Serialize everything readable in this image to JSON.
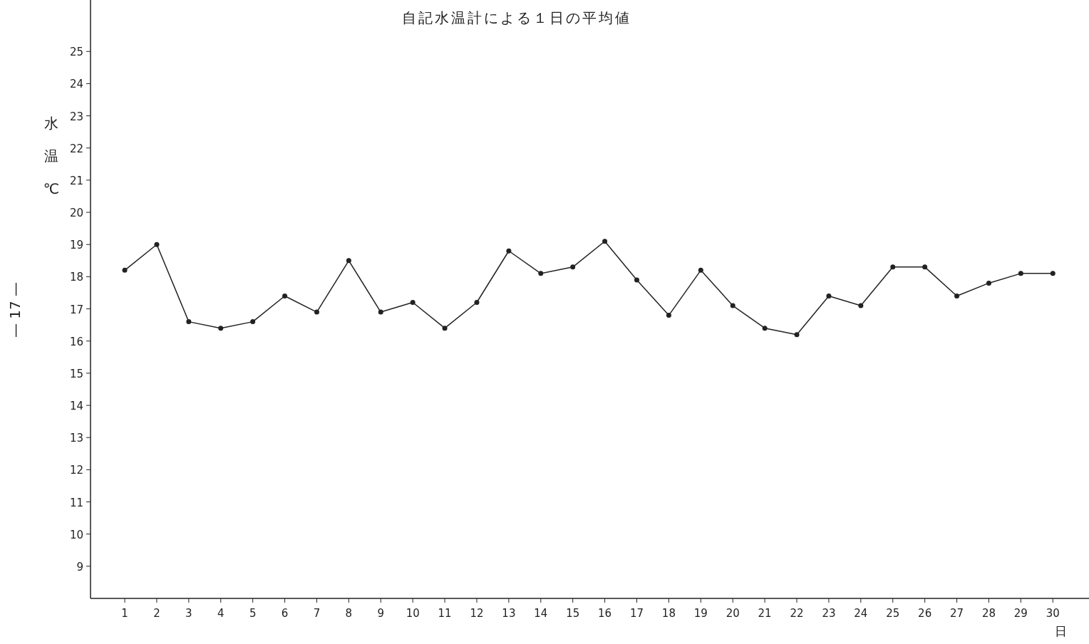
{
  "chart_data": {
    "type": "line",
    "title": "自記水温計による１日の平均値",
    "xlabel": "日",
    "ylabel": "水温℃",
    "categories": [
      "1",
      "2",
      "3",
      "4",
      "5",
      "6",
      "7",
      "8",
      "9",
      "10",
      "11",
      "12",
      "13",
      "14",
      "15",
      "16",
      "17",
      "18",
      "19",
      "20",
      "21",
      "22",
      "23",
      "24",
      "25",
      "26",
      "27",
      "28",
      "29",
      "30"
    ],
    "series": [
      {
        "color": "#222222",
        "values": [
          18.2,
          19.0,
          16.6,
          16.4,
          16.6,
          17.4,
          16.9,
          18.5,
          16.9,
          17.2,
          16.4,
          17.2,
          18.8,
          18.1,
          18.3,
          19.1,
          17.9,
          16.8,
          18.2,
          17.1,
          16.4,
          16.2,
          17.4,
          17.1,
          18.3,
          18.3,
          17.4,
          17.8,
          18.1,
          18.1
        ]
      }
    ],
    "ylim": [
      8,
      26.6
    ],
    "yticks": [
      9,
      10,
      11,
      12,
      13,
      14,
      15,
      16,
      17,
      18,
      19,
      20,
      21,
      22,
      23,
      24,
      25
    ],
    "marker": "circle",
    "line_style": "solid",
    "annotations": [
      "— 17 —"
    ]
  }
}
